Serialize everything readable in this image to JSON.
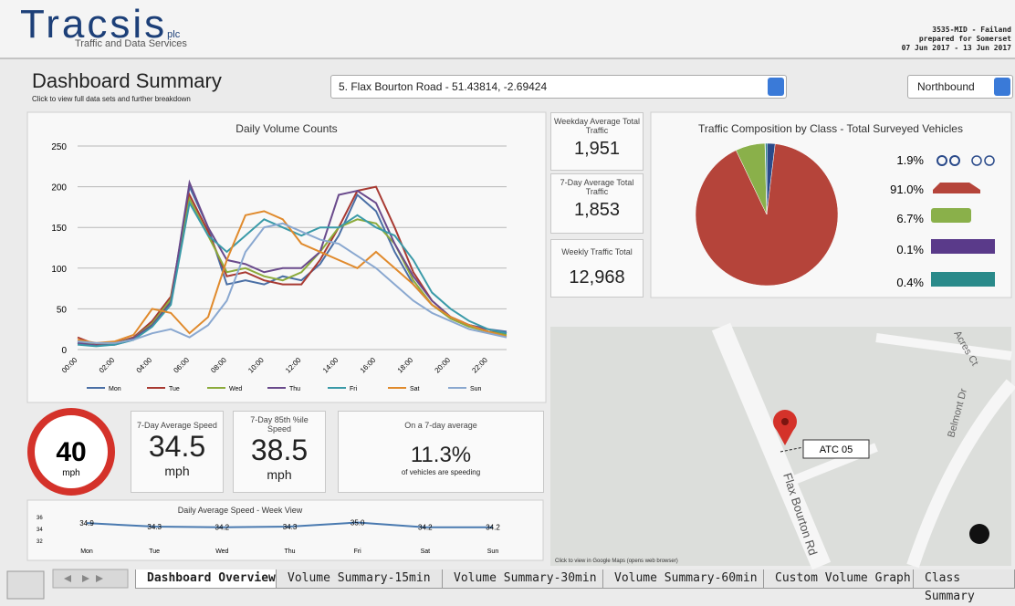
{
  "header": {
    "logo": "Tracsis",
    "logo_suffix": "plc",
    "tagline": "Traffic and Data Services",
    "site": "3535-MID - Failand",
    "prepared_for": "prepared for Somerset",
    "date_range": "07 Jun 2017 - 13 Jun 2017"
  },
  "dashboard": {
    "title": "Dashboard Summary",
    "subtitle": "Click to view full data sets and further breakdown",
    "site_select": "5. Flax Bourton Road - 51.43814, -2.69424",
    "direction_select": "Northbound"
  },
  "volume_chart": {
    "type": "line",
    "title": "Daily Volume Counts",
    "categories": [
      "00:00",
      null,
      "02:00",
      null,
      "04:00",
      null,
      "06:00",
      null,
      "08:00",
      null,
      "10:00",
      null,
      "12:00",
      null,
      "14:00",
      null,
      "16:00",
      null,
      "18:00",
      null,
      "20:00",
      null,
      "22:00",
      null
    ],
    "ylim": [
      0,
      250
    ],
    "yticks": [
      0,
      50,
      100,
      150,
      200,
      250
    ],
    "grid": true,
    "series": [
      {
        "name": "Mon",
        "color": "#4a6fa5",
        "values": [
          8,
          5,
          6,
          12,
          30,
          60,
          200,
          150,
          80,
          85,
          80,
          90,
          85,
          105,
          140,
          190,
          170,
          120,
          80,
          55,
          40,
          30,
          25,
          22
        ]
      },
      {
        "name": "Tue",
        "color": "#a83a32",
        "values": [
          15,
          6,
          8,
          15,
          35,
          65,
          190,
          145,
          90,
          95,
          85,
          80,
          80,
          110,
          150,
          195,
          200,
          150,
          95,
          60,
          40,
          30,
          22,
          20
        ]
      },
      {
        "name": "Wed",
        "color": "#8cab3c",
        "values": [
          10,
          5,
          7,
          14,
          32,
          62,
          185,
          140,
          95,
          100,
          90,
          85,
          95,
          120,
          150,
          160,
          155,
          130,
          85,
          55,
          38,
          28,
          22,
          18
        ]
      },
      {
        "name": "Thu",
        "color": "#6a4a8c",
        "values": [
          8,
          5,
          6,
          14,
          30,
          58,
          205,
          150,
          110,
          105,
          95,
          100,
          100,
          120,
          190,
          195,
          180,
          130,
          90,
          60,
          40,
          30,
          25,
          20
        ]
      },
      {
        "name": "Fri",
        "color": "#3a9aa8",
        "values": [
          6,
          4,
          6,
          12,
          28,
          55,
          180,
          140,
          120,
          140,
          160,
          150,
          140,
          150,
          150,
          165,
          150,
          140,
          110,
          70,
          50,
          35,
          25,
          20
        ]
      },
      {
        "name": "Sat",
        "color": "#e08a2c",
        "values": [
          12,
          8,
          10,
          18,
          50,
          45,
          20,
          40,
          110,
          165,
          170,
          160,
          130,
          120,
          110,
          100,
          120,
          100,
          80,
          55,
          40,
          30,
          22,
          16
        ]
      },
      {
        "name": "Sun",
        "color": "#8aa8d0",
        "values": [
          10,
          8,
          8,
          12,
          20,
          25,
          15,
          30,
          60,
          120,
          150,
          155,
          145,
          135,
          130,
          115,
          100,
          80,
          60,
          45,
          35,
          25,
          20,
          15
        ]
      }
    ]
  },
  "stats": [
    {
      "label": "Weekday Average Total Traffic",
      "value": "1,951"
    },
    {
      "label": "7-Day Average Total Traffic",
      "value": "1,853"
    },
    {
      "label": "Weekly Traffic Total",
      "value": "12,968"
    }
  ],
  "composition_chart": {
    "type": "pie",
    "title": "Traffic Composition by Class - Total Surveyed Vehicles",
    "values": [
      1.9,
      91.0,
      6.7,
      0.1,
      0.4
    ],
    "value_labels": [
      "1.9%",
      "91.0%",
      "6.7%",
      "0.1%",
      "0.4%"
    ],
    "colors": [
      "#2a4a8a",
      "#b5443a",
      "#8ab04a",
      "#5a3a8a",
      "#2a8a8a"
    ]
  },
  "speed": {
    "limit": "40",
    "limit_unit": "mph",
    "avg_label": "7-Day Average Speed",
    "avg_value": "34.5",
    "avg_unit": "mph",
    "p85_label": "7-Day 85th %ile Speed",
    "p85_value": "38.5",
    "p85_unit": "mph",
    "speeding_heading": "On a 7-day average",
    "speeding_value": "11.3%",
    "speeding_note": "of vehicles are speeding"
  },
  "speed_chart": {
    "type": "line",
    "title": "Daily Average Speed - Week View",
    "categories": [
      "Mon",
      "Tue",
      "Wed",
      "Thu",
      "Fri",
      "Sat",
      "Sun"
    ],
    "values": [
      34.9,
      34.3,
      34.2,
      34.3,
      35.0,
      34.2,
      34.2
    ],
    "value_labels": [
      "34.9",
      "34.3",
      "34.2",
      "34.3",
      "35.0",
      "34.2",
      "34.2"
    ],
    "ylim": [
      32,
      36
    ],
    "yticks": [
      32,
      34,
      36
    ],
    "color": "#4a7ab0"
  },
  "map": {
    "marker_label": "ATC 05",
    "road": "Flax Bourton Rd",
    "streets": [
      "Belmont Dr",
      "Acres Ct"
    ],
    "note": "Click to view in Google Maps (opens web browser)"
  },
  "tabs": [
    "Dashboard Overview",
    "Volume Summary-15min",
    "Volume Summary-30min",
    "Volume Summary-60min",
    "Custom Volume Graph",
    "Class Summary"
  ]
}
